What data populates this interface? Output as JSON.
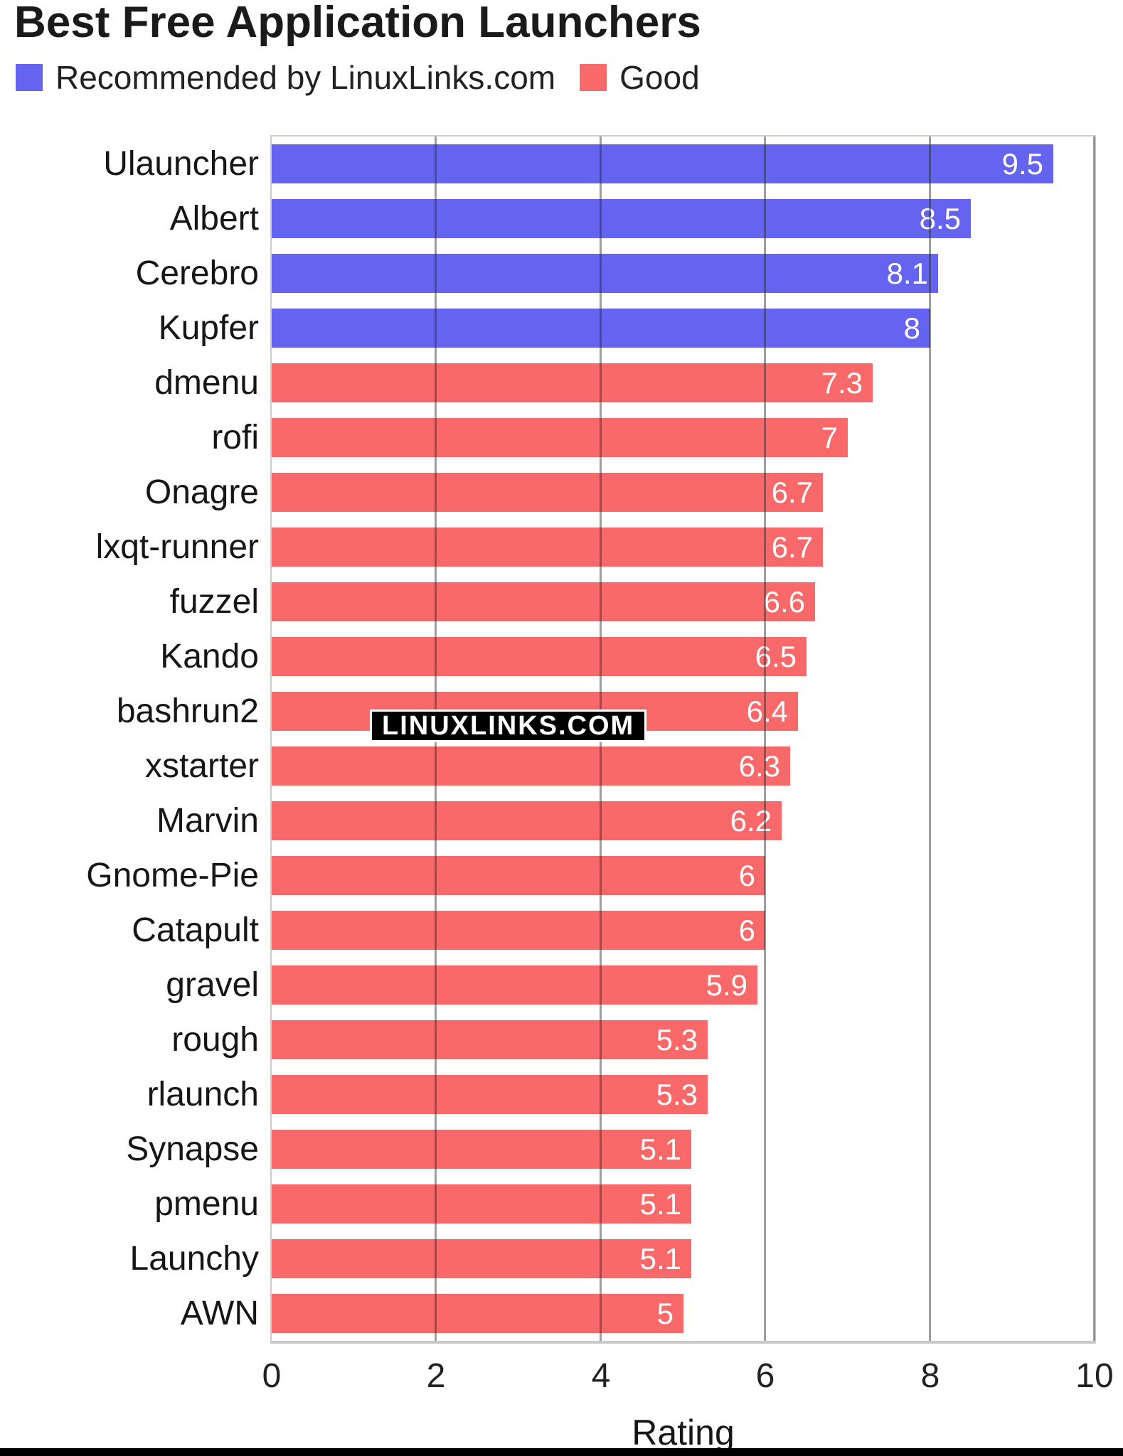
{
  "watermark": "LINUXLINKS.COM",
  "colors": {
    "recommended": "#6464F0",
    "good": "#FA6969",
    "background": "#FFFFFF",
    "gridline_gray": "#8E8E8E",
    "frame_gray": "#CCCCCC",
    "value_label": "#FFFFFF",
    "text": "#1A1A1A"
  },
  "chart_data": {
    "type": "bar",
    "orientation": "horizontal",
    "title": "Best Free Application Launchers",
    "xlabel": "Rating",
    "ylabel": "",
    "xlim": [
      0,
      10
    ],
    "xticks": [
      0,
      2,
      4,
      6,
      8,
      10
    ],
    "xtick_labels": [
      "0",
      "2",
      "4",
      "6",
      "8",
      "10"
    ],
    "grid": true,
    "legend_position": "top",
    "legend": [
      {
        "name": "Recommended by LinuxLinks.com",
        "color": "#6464F0",
        "key": "recommended"
      },
      {
        "name": "Good",
        "color": "#FA6969",
        "key": "good"
      }
    ],
    "bars": [
      {
        "category": "Ulauncher",
        "value": 9.5,
        "display": "9.5",
        "group": "recommended"
      },
      {
        "category": "Albert",
        "value": 8.5,
        "display": "8.5",
        "group": "recommended"
      },
      {
        "category": "Cerebro",
        "value": 8.1,
        "display": "8.1",
        "group": "recommended"
      },
      {
        "category": "Kupfer",
        "value": 8,
        "display": "8",
        "group": "recommended"
      },
      {
        "category": "dmenu",
        "value": 7.3,
        "display": "7.3",
        "group": "good"
      },
      {
        "category": "rofi",
        "value": 7,
        "display": "7",
        "group": "good"
      },
      {
        "category": "Onagre",
        "value": 6.7,
        "display": "6.7",
        "group": "good"
      },
      {
        "category": "lxqt-runner",
        "value": 6.7,
        "display": "6.7",
        "group": "good"
      },
      {
        "category": "fuzzel",
        "value": 6.6,
        "display": "6.6",
        "group": "good"
      },
      {
        "category": "Kando",
        "value": 6.5,
        "display": "6.5",
        "group": "good"
      },
      {
        "category": "bashrun2",
        "value": 6.4,
        "display": "6.4",
        "group": "good"
      },
      {
        "category": "xstarter",
        "value": 6.3,
        "display": "6.3",
        "group": "good"
      },
      {
        "category": "Marvin",
        "value": 6.2,
        "display": "6.2",
        "group": "good"
      },
      {
        "category": "Gnome-Pie",
        "value": 6,
        "display": "6",
        "group": "good"
      },
      {
        "category": "Catapult",
        "value": 6,
        "display": "6",
        "group": "good"
      },
      {
        "category": "gravel",
        "value": 5.9,
        "display": "5.9",
        "group": "good"
      },
      {
        "category": "rough",
        "value": 5.3,
        "display": "5.3",
        "group": "good"
      },
      {
        "category": "rlaunch",
        "value": 5.3,
        "display": "5.3",
        "group": "good"
      },
      {
        "category": "Synapse",
        "value": 5.1,
        "display": "5.1",
        "group": "good"
      },
      {
        "category": "pmenu",
        "value": 5.1,
        "display": "5.1",
        "group": "good"
      },
      {
        "category": "Launchy",
        "value": 5.1,
        "display": "5.1",
        "group": "good"
      },
      {
        "category": "AWN",
        "value": 5,
        "display": "5",
        "group": "good"
      }
    ]
  }
}
